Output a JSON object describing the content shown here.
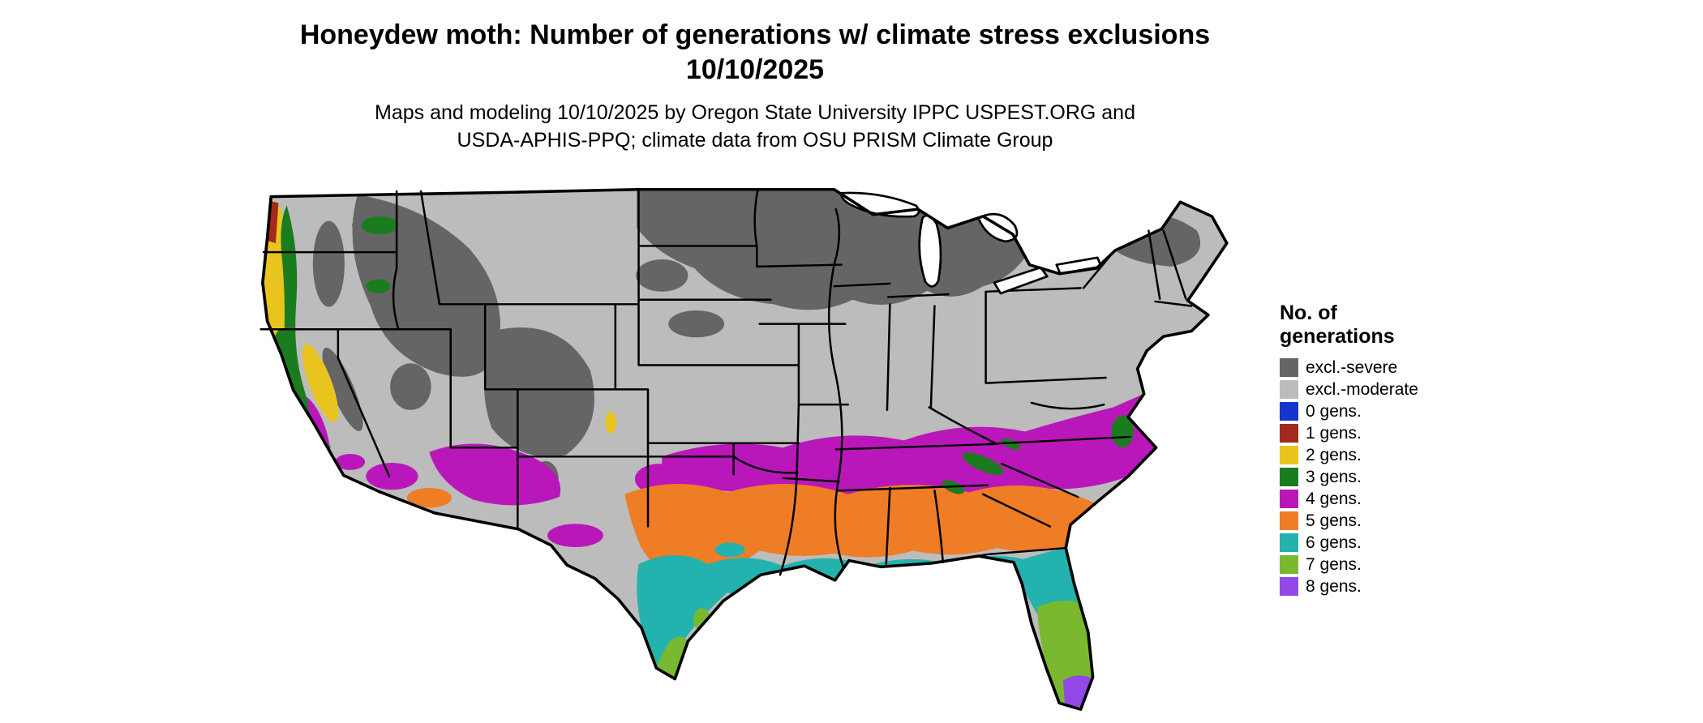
{
  "title": {
    "line1": "Honeydew moth: Number of generations w/ climate stress exclusions",
    "line2": "10/10/2025"
  },
  "subtitle": {
    "line1": "Maps and modeling 10/10/2025 by Oregon State University IPPC USPEST.ORG and",
    "line2": "USDA-APHIS-PPQ; climate data from OSU PRISM Climate Group"
  },
  "legend": {
    "title_line1": "No. of",
    "title_line2": "generations",
    "items": [
      {
        "key": "excl_severe",
        "label": "excl.-severe",
        "color": "#656565"
      },
      {
        "key": "excl_moderate",
        "label": "excl.-moderate",
        "color": "#bcbcbc"
      },
      {
        "key": "gens_0",
        "label": "0 gens.",
        "color": "#1535cd"
      },
      {
        "key": "gens_1",
        "label": "1 gens.",
        "color": "#a3291c"
      },
      {
        "key": "gens_2",
        "label": "2 gens.",
        "color": "#eac41e"
      },
      {
        "key": "gens_3",
        "label": "3 gens.",
        "color": "#1b7c1f"
      },
      {
        "key": "gens_4",
        "label": "4 gens.",
        "color": "#ba17ba"
      },
      {
        "key": "gens_5",
        "label": "5 gens.",
        "color": "#ee7d26"
      },
      {
        "key": "gens_6",
        "label": "6 gens.",
        "color": "#23b2ad"
      },
      {
        "key": "gens_7",
        "label": "7 gens.",
        "color": "#7ab92f"
      },
      {
        "key": "gens_8",
        "label": "8 gens.",
        "color": "#9348e8"
      }
    ]
  },
  "map": {
    "region": "Contiguous United States",
    "type": "raster choropleth of honeydew moth generations with climate stress exclusions"
  }
}
